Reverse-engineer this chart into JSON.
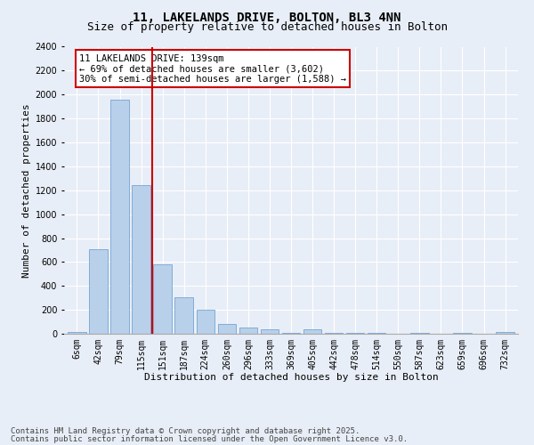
{
  "title1": "11, LAKELANDS DRIVE, BOLTON, BL3 4NN",
  "title2": "Size of property relative to detached houses in Bolton",
  "xlabel": "Distribution of detached houses by size in Bolton",
  "ylabel": "Number of detached properties",
  "categories": [
    "6sqm",
    "42sqm",
    "79sqm",
    "115sqm",
    "151sqm",
    "187sqm",
    "224sqm",
    "260sqm",
    "296sqm",
    "333sqm",
    "369sqm",
    "405sqm",
    "442sqm",
    "478sqm",
    "514sqm",
    "550sqm",
    "587sqm",
    "623sqm",
    "659sqm",
    "696sqm",
    "732sqm"
  ],
  "values": [
    15,
    710,
    1960,
    1240,
    580,
    305,
    200,
    85,
    50,
    35,
    5,
    35,
    5,
    5,
    5,
    0,
    5,
    0,
    5,
    0,
    15
  ],
  "bar_color": "#b8d0ea",
  "bar_edge_color": "#6699cc",
  "vline_color": "#cc0000",
  "annotation_text": "11 LAKELANDS DRIVE: 139sqm\n← 69% of detached houses are smaller (3,602)\n30% of semi-detached houses are larger (1,588) →",
  "annotation_box_color": "#ffffff",
  "annotation_box_edge": "#cc0000",
  "ylim": [
    0,
    2400
  ],
  "yticks": [
    0,
    200,
    400,
    600,
    800,
    1000,
    1200,
    1400,
    1600,
    1800,
    2000,
    2200,
    2400
  ],
  "footer1": "Contains HM Land Registry data © Crown copyright and database right 2025.",
  "footer2": "Contains public sector information licensed under the Open Government Licence v3.0.",
  "bg_color": "#e8eef7",
  "title_fontsize": 10,
  "subtitle_fontsize": 9,
  "axis_label_fontsize": 8,
  "tick_fontsize": 7,
  "annotation_fontsize": 7.5,
  "footer_fontsize": 6.5
}
